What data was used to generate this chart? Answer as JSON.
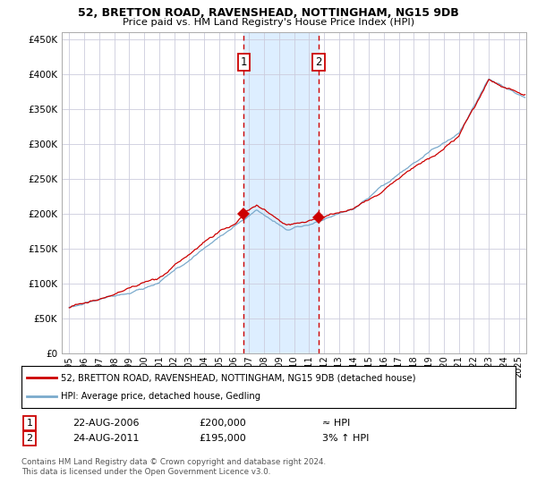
{
  "title1": "52, BRETTON ROAD, RAVENSHEAD, NOTTINGHAM, NG15 9DB",
  "title2": "Price paid vs. HM Land Registry's House Price Index (HPI)",
  "legend_line1": "52, BRETTON ROAD, RAVENSHEAD, NOTTINGHAM, NG15 9DB (detached house)",
  "legend_line2": "HPI: Average price, detached house, Gedling",
  "annotation1": [
    "1",
    "22-AUG-2006",
    "£200,000",
    "≈ HPI"
  ],
  "annotation2": [
    "2",
    "24-AUG-2011",
    "£195,000",
    "3% ↑ HPI"
  ],
  "footer": "Contains HM Land Registry data © Crown copyright and database right 2024.\nThis data is licensed under the Open Government Licence v3.0.",
  "sale1_year": 2006.646,
  "sale1_price": 200000,
  "sale2_year": 2011.646,
  "sale2_price": 195000,
  "red_color": "#cc0000",
  "blue_color": "#7aaacc",
  "shade_color": "#ddeeff",
  "background_color": "#ffffff",
  "grid_color": "#ccccdd",
  "ylim": [
    0,
    460000
  ],
  "xlim": [
    1994.5,
    2025.5
  ],
  "yticks": [
    0,
    50000,
    100000,
    150000,
    200000,
    250000,
    300000,
    350000,
    400000,
    450000
  ],
  "ylabels": [
    "£0",
    "£50K",
    "£100K",
    "£150K",
    "£200K",
    "£250K",
    "£300K",
    "£350K",
    "£400K",
    "£450K"
  ]
}
